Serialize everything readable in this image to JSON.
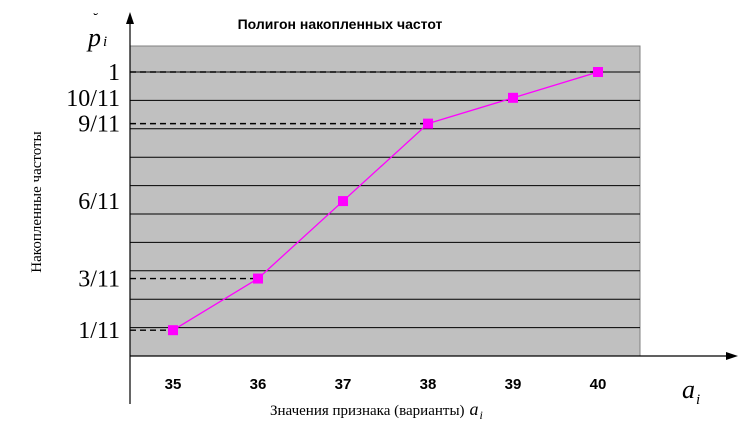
{
  "chart_data": {
    "type": "line",
    "title": "Полигон накопленных частот",
    "xlabel": "Значения признака (варианты)",
    "xlabel_symbol": "a",
    "xlabel_symbol_sub": "i",
    "ylabel": "Накопленные частоты",
    "y_axis_symbol": "p",
    "y_axis_symbol_sub": "i",
    "x_axis_symbol": "a",
    "x_axis_symbol_sub": "i",
    "categories": [
      "35",
      "36",
      "37",
      "38",
      "39",
      "40"
    ],
    "values": [
      0.0909,
      0.2727,
      0.5455,
      0.8182,
      0.9091,
      1.0
    ],
    "ylim": [
      0,
      1.05
    ],
    "y_gridlines": [
      0.1,
      0.2,
      0.3,
      0.4,
      0.5,
      0.6,
      0.7,
      0.8,
      0.9,
      1.0
    ],
    "y_tick_labels": [
      {
        "label": "1/11",
        "value": 0.0909
      },
      {
        "label": "3/11",
        "value": 0.2727
      },
      {
        "label": "6/11",
        "value": 0.5455
      },
      {
        "label": "9/11",
        "value": 0.8182
      },
      {
        "label": "10/11",
        "value": 0.9091
      },
      {
        "label": "1",
        "value": 1.0
      }
    ],
    "dashed_guides": [
      0.0909,
      0.2727,
      0.8182,
      1.0
    ],
    "grid": true,
    "colors": {
      "plot_background": "#c0c0c0",
      "line": "#ff00ff",
      "marker": "#ff00ff",
      "grid": "#000000"
    }
  }
}
